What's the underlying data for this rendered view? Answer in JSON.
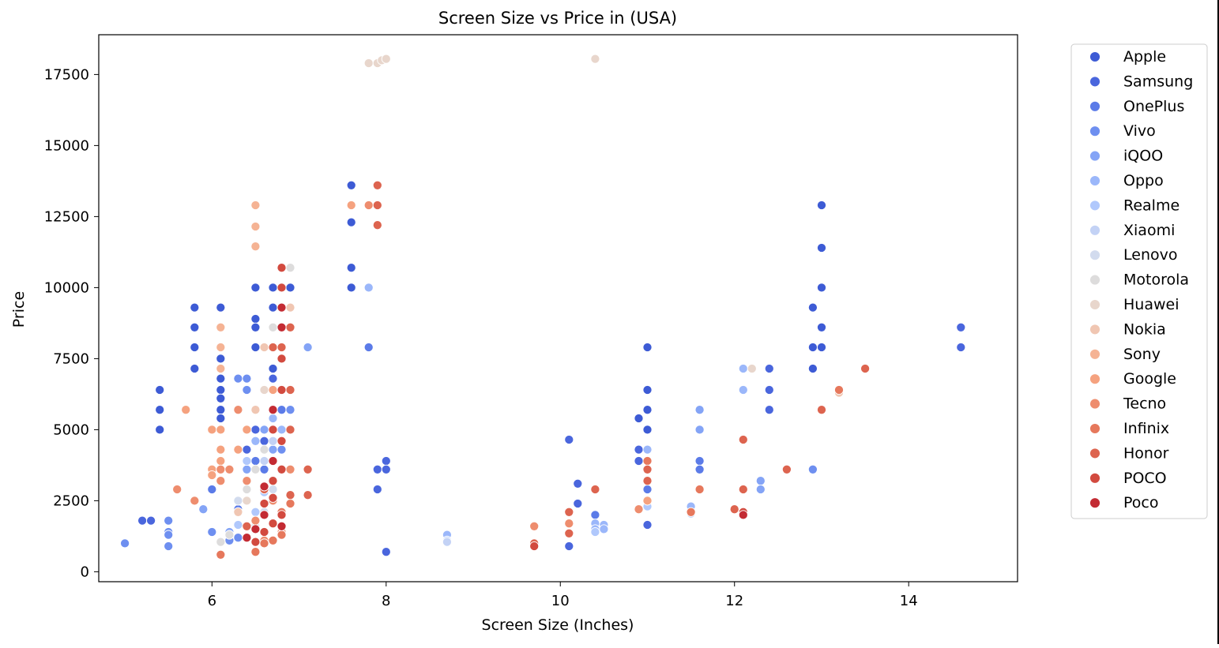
{
  "chart_data": {
    "type": "scatter",
    "title": "Screen Size vs Price in (USA)",
    "xlabel": "Screen Size (Inches)",
    "ylabel": "Price",
    "xlim": [
      4.7,
      15.25
    ],
    "ylim": [
      -350,
      18900
    ],
    "xticks": [
      6,
      8,
      10,
      12,
      14
    ],
    "yticks": [
      0,
      2500,
      5000,
      7500,
      10000,
      12500,
      15000,
      17500
    ],
    "grid": false,
    "legend_position": "outside-right",
    "series": [
      {
        "name": "Apple",
        "color": "#3d5bd5",
        "points": [
          [
            5.4,
            6400
          ],
          [
            5.4,
            5700
          ],
          [
            5.4,
            5000
          ],
          [
            5.8,
            9300
          ],
          [
            5.8,
            8600
          ],
          [
            5.8,
            7900
          ],
          [
            5.8,
            7150
          ],
          [
            6.1,
            9300
          ],
          [
            6.1,
            7900
          ],
          [
            6.1,
            7500
          ],
          [
            6.1,
            6800
          ],
          [
            6.1,
            6400
          ],
          [
            6.1,
            6100
          ],
          [
            6.1,
            5700
          ],
          [
            6.1,
            5400
          ],
          [
            6.5,
            10000
          ],
          [
            6.5,
            8900
          ],
          [
            6.5,
            8600
          ],
          [
            6.5,
            7900
          ],
          [
            6.7,
            10000
          ],
          [
            6.7,
            9300
          ],
          [
            6.7,
            8600
          ],
          [
            6.7,
            7900
          ],
          [
            6.7,
            7150
          ],
          [
            6.9,
            10000
          ],
          [
            7.6,
            13600
          ],
          [
            7.6,
            12300
          ],
          [
            7.6,
            10700
          ],
          [
            7.6,
            10000
          ],
          [
            10.9,
            5400
          ],
          [
            11,
            7900
          ],
          [
            11,
            6400
          ],
          [
            11,
            5700
          ],
          [
            11,
            5000
          ],
          [
            12.9,
            9300
          ],
          [
            12.9,
            7900
          ],
          [
            12.9,
            7150
          ],
          [
            13,
            12900
          ],
          [
            13,
            11400
          ],
          [
            13,
            10000
          ],
          [
            13,
            8600
          ],
          [
            13,
            7900
          ]
        ]
      },
      {
        "name": "Samsung",
        "color": "#4a66dd",
        "points": [
          [
            5.2,
            1800
          ],
          [
            5.3,
            1800
          ],
          [
            6.4,
            4300
          ],
          [
            6.5,
            5000
          ],
          [
            6.6,
            4600
          ],
          [
            6.7,
            6800
          ],
          [
            6.7,
            5000
          ],
          [
            7.9,
            3600
          ],
          [
            7.9,
            2900
          ],
          [
            8.0,
            3900
          ],
          [
            8.0,
            3600
          ],
          [
            8.0,
            700
          ],
          [
            10.1,
            4650
          ],
          [
            10.1,
            900
          ],
          [
            10.2,
            3100
          ],
          [
            10.2,
            2400
          ],
          [
            10.9,
            4300
          ],
          [
            10.9,
            3900
          ],
          [
            11,
            1650
          ],
          [
            12.4,
            7150
          ],
          [
            12.4,
            6400
          ],
          [
            12.4,
            5700
          ],
          [
            14.6,
            8600
          ],
          [
            14.6,
            7900
          ]
        ]
      },
      {
        "name": "OnePlus",
        "color": "#5b7be8",
        "points": [
          [
            6.0,
            2900
          ],
          [
            6.3,
            2200
          ],
          [
            6.4,
            2500
          ],
          [
            6.5,
            3900
          ],
          [
            6.6,
            3600
          ],
          [
            6.7,
            3200
          ],
          [
            6.8,
            5700
          ],
          [
            7.8,
            7900
          ],
          [
            10.4,
            2000
          ],
          [
            11,
            2900
          ],
          [
            11.6,
            3900
          ],
          [
            11.6,
            3600
          ]
        ]
      },
      {
        "name": "Vivo",
        "color": "#6e8ff0",
        "points": [
          [
            5.0,
            1000
          ],
          [
            5.5,
            1800
          ],
          [
            5.5,
            1400
          ],
          [
            5.5,
            1300
          ],
          [
            5.5,
            900
          ],
          [
            6.0,
            1400
          ],
          [
            6.2,
            1100
          ],
          [
            6.3,
            1200
          ],
          [
            6.3,
            6800
          ],
          [
            6.4,
            6400
          ],
          [
            6.4,
            6800
          ],
          [
            6.6,
            6400
          ],
          [
            6.7,
            5700
          ],
          [
            6.8,
            4300
          ],
          [
            6.9,
            5700
          ],
          [
            12.9,
            3600
          ]
        ]
      },
      {
        "name": "iQOO",
        "color": "#84a4f6",
        "points": [
          [
            5.9,
            2200
          ],
          [
            6.2,
            1400
          ],
          [
            6.4,
            3600
          ],
          [
            6.6,
            5000
          ],
          [
            6.7,
            4300
          ],
          [
            6.8,
            6400
          ],
          [
            7.1,
            7900
          ],
          [
            11.6,
            5000
          ],
          [
            11.6,
            5700
          ],
          [
            12.3,
            3200
          ],
          [
            12.3,
            2900
          ]
        ]
      },
      {
        "name": "Oppo",
        "color": "#9bb7fa",
        "points": [
          [
            6.3,
            2500
          ],
          [
            6.4,
            5000
          ],
          [
            6.5,
            4600
          ],
          [
            6.7,
            5400
          ],
          [
            6.8,
            5000
          ],
          [
            7.8,
            10000
          ],
          [
            8.7,
            1300
          ],
          [
            10.4,
            1700
          ],
          [
            10.4,
            1500
          ],
          [
            10.5,
            1650
          ],
          [
            10.5,
            1500
          ],
          [
            11,
            4300
          ],
          [
            11.5,
            2300
          ],
          [
            12.1,
            7150
          ],
          [
            12.1,
            6400
          ]
        ]
      },
      {
        "name": "Realme",
        "color": "#b0c8fc",
        "points": [
          [
            6.3,
            1650
          ],
          [
            6.4,
            3900
          ],
          [
            6.5,
            2100
          ],
          [
            6.6,
            2800
          ],
          [
            6.7,
            5700
          ],
          [
            8.7,
            1100
          ],
          [
            10.4,
            1400
          ],
          [
            11,
            2300
          ],
          [
            11.5,
            2050
          ]
        ]
      },
      {
        "name": "Xiaomi",
        "color": "#c3d2f5",
        "points": [
          [
            6.3,
            2500
          ],
          [
            6.4,
            3200
          ],
          [
            6.6,
            3900
          ],
          [
            6.7,
            4600
          ],
          [
            6.7,
            6400
          ],
          [
            6.8,
            7900
          ],
          [
            8.7,
            1050
          ]
        ]
      },
      {
        "name": "Lenovo",
        "color": "#d2dbee",
        "points": [
          [
            6.3,
            2500
          ],
          [
            6.5,
            1600
          ],
          [
            6.6,
            2100
          ],
          [
            6.7,
            2900
          ]
        ]
      },
      {
        "name": "Motorola",
        "color": "#dddcdc",
        "points": [
          [
            6.1,
            1050
          ],
          [
            6.2,
            1300
          ],
          [
            6.3,
            2100
          ],
          [
            6.4,
            2900
          ],
          [
            6.5,
            3600
          ],
          [
            6.6,
            4300
          ],
          [
            6.6,
            7900
          ],
          [
            6.7,
            8600
          ],
          [
            6.8,
            9300
          ],
          [
            6.9,
            10700
          ]
        ]
      },
      {
        "name": "Huawei",
        "color": "#e8d6cc",
        "points": [
          [
            6.4,
            2500
          ],
          [
            6.6,
            6400
          ],
          [
            6.8,
            9300
          ],
          [
            7.8,
            17900
          ],
          [
            7.9,
            17900
          ],
          [
            7.95,
            18000
          ],
          [
            8.0,
            18050
          ],
          [
            10.4,
            18050
          ],
          [
            12.2,
            7150
          ]
        ]
      },
      {
        "name": "Nokia",
        "color": "#f0c6b2",
        "points": [
          [
            6.3,
            2100
          ],
          [
            6.5,
            5700
          ],
          [
            6.6,
            7900
          ],
          [
            6.8,
            8600
          ],
          [
            6.9,
            9300
          ],
          [
            13.2,
            6300
          ]
        ]
      },
      {
        "name": "Sony",
        "color": "#f5b394",
        "points": [
          [
            6.1,
            8600
          ],
          [
            6.1,
            7900
          ],
          [
            6.1,
            7150
          ],
          [
            6.5,
            12900
          ],
          [
            6.5,
            12150
          ],
          [
            6.5,
            11450
          ]
        ]
      },
      {
        "name": "Google",
        "color": "#f5a27f",
        "points": [
          [
            5.7,
            5700
          ],
          [
            6.0,
            5000
          ],
          [
            6.0,
            3600
          ],
          [
            6.0,
            3400
          ],
          [
            6.1,
            5000
          ],
          [
            6.1,
            4300
          ],
          [
            6.1,
            3900
          ],
          [
            6.3,
            4300
          ],
          [
            6.4,
            5000
          ],
          [
            6.7,
            6400
          ],
          [
            6.7,
            5700
          ],
          [
            7.6,
            12900
          ],
          [
            11,
            2500
          ]
        ]
      },
      {
        "name": "Tecno",
        "color": "#ee8d6e",
        "points": [
          [
            5.6,
            2900
          ],
          [
            5.8,
            2500
          ],
          [
            6.1,
            3600
          ],
          [
            6.1,
            3200
          ],
          [
            6.2,
            3600
          ],
          [
            6.3,
            5700
          ],
          [
            6.4,
            3200
          ],
          [
            6.5,
            1800
          ],
          [
            6.6,
            1100
          ],
          [
            6.7,
            2500
          ],
          [
            6.8,
            1400
          ],
          [
            6.9,
            3600
          ],
          [
            7.8,
            12900
          ],
          [
            9.7,
            1600
          ],
          [
            10.1,
            1700
          ],
          [
            10.9,
            2200
          ]
        ]
      },
      {
        "name": "Infinix",
        "color": "#e6785c",
        "points": [
          [
            6.1,
            600
          ],
          [
            6.5,
            700
          ],
          [
            6.6,
            1000
          ],
          [
            6.7,
            1100
          ],
          [
            6.8,
            1300
          ],
          [
            6.8,
            2100
          ],
          [
            6.9,
            2400
          ],
          [
            11,
            3900
          ],
          [
            11.5,
            2100
          ],
          [
            11.6,
            2900
          ],
          [
            13.2,
            6400
          ]
        ]
      },
      {
        "name": "Honor",
        "color": "#dd644f",
        "points": [
          [
            6.4,
            1600
          ],
          [
            6.6,
            2900
          ],
          [
            6.7,
            7900
          ],
          [
            6.8,
            7900
          ],
          [
            6.8,
            6400
          ],
          [
            6.9,
            8600
          ],
          [
            6.9,
            6400
          ],
          [
            6.9,
            5000
          ],
          [
            6.9,
            2700
          ],
          [
            7.1,
            3600
          ],
          [
            7.1,
            2700
          ],
          [
            7.9,
            13600
          ],
          [
            7.9,
            12900
          ],
          [
            7.9,
            12200
          ],
          [
            9.7,
            1000
          ],
          [
            10.1,
            1350
          ],
          [
            10.1,
            2100
          ],
          [
            10.4,
            2900
          ],
          [
            11,
            3600
          ],
          [
            11,
            3200
          ],
          [
            12,
            2200
          ],
          [
            12.1,
            4650
          ],
          [
            12.1,
            2900
          ],
          [
            12.6,
            3600
          ],
          [
            13,
            5700
          ],
          [
            13.5,
            7150
          ]
        ]
      },
      {
        "name": "POCO",
        "color": "#d24a3f",
        "points": [
          [
            6.5,
            1050
          ],
          [
            6.6,
            1400
          ],
          [
            6.6,
            2400
          ],
          [
            6.7,
            1700
          ],
          [
            6.7,
            2600
          ],
          [
            6.7,
            3200
          ],
          [
            6.7,
            5000
          ],
          [
            6.8,
            2000
          ],
          [
            6.8,
            3600
          ],
          [
            6.8,
            4600
          ],
          [
            6.8,
            6400
          ],
          [
            6.8,
            7500
          ],
          [
            6.8,
            10000
          ],
          [
            6.8,
            10700
          ],
          [
            9.7,
            900
          ],
          [
            12.1,
            2100
          ]
        ]
      },
      {
        "name": "Poco",
        "color": "#c32b33",
        "points": [
          [
            6.4,
            1200
          ],
          [
            6.5,
            1500
          ],
          [
            6.6,
            2000
          ],
          [
            6.6,
            3000
          ],
          [
            6.7,
            3900
          ],
          [
            6.7,
            5700
          ],
          [
            6.8,
            1600
          ],
          [
            6.8,
            8600
          ],
          [
            6.8,
            9300
          ],
          [
            12.1,
            2000
          ]
        ]
      }
    ]
  }
}
